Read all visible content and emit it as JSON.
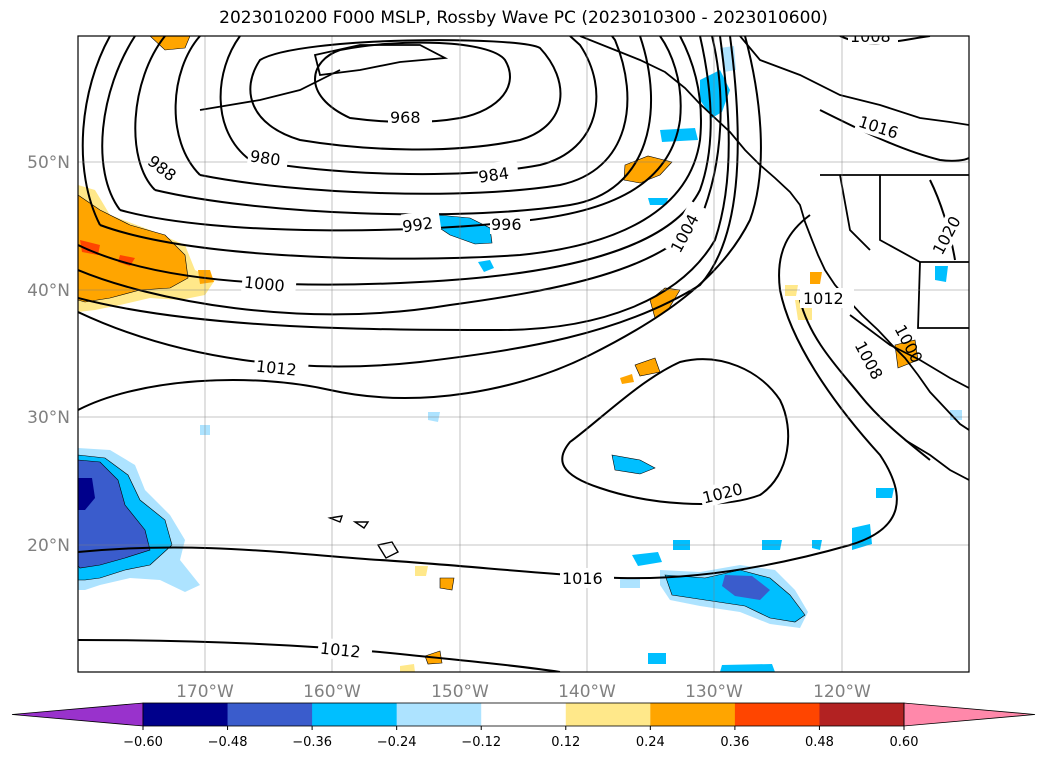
{
  "title": "2023010200 F000 MSLP, Rossby Wave PC (2023010300 - 2023010600)",
  "map": {
    "lon_labels": [
      "170°W",
      "160°W",
      "150°W",
      "140°W",
      "130°W",
      "120°W"
    ],
    "lat_labels": [
      "50°N",
      "40°N",
      "30°N",
      "20°N"
    ],
    "contour_labels": [
      "968",
      "980",
      "984",
      "988",
      "992",
      "996",
      "1000",
      "1004",
      "1012",
      "1016",
      "1020",
      "1008",
      "1012",
      "1016",
      "1020",
      "1012",
      "1000",
      "1008"
    ],
    "grid": true
  },
  "colorbar": {
    "ticks": [
      "−0.60",
      "−0.48",
      "−0.36",
      "−0.24",
      "−0.12",
      "0.12",
      "0.24",
      "0.36",
      "0.48",
      "0.60"
    ],
    "colors": [
      "#9932CC",
      "#00008B",
      "#3A5CCC",
      "#00BFFF",
      "#ADE3FF",
      "#FFFFFF",
      "#FFE88A",
      "#FFA500",
      "#FF4500",
      "#B22222",
      "#FF88AA"
    ],
    "extend": "both"
  }
}
